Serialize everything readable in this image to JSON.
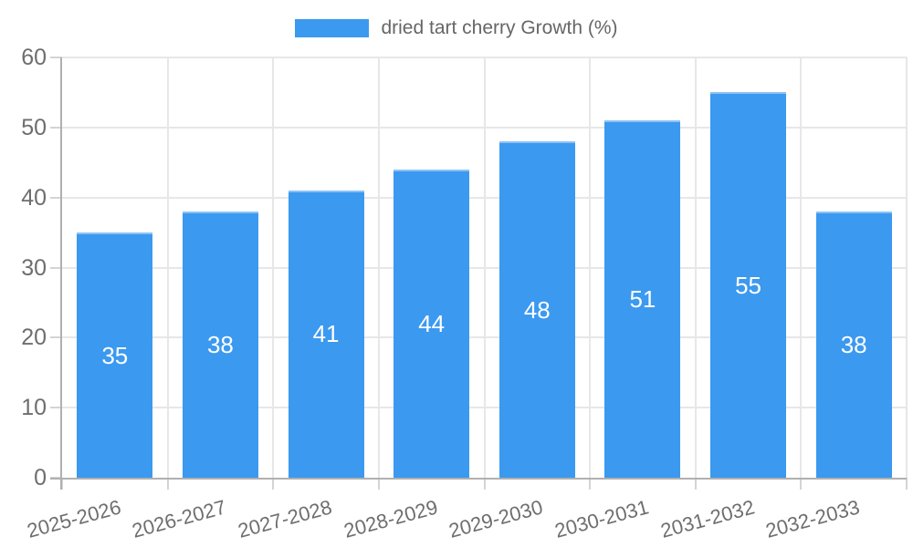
{
  "legend": {
    "label": "dried tart cherry Growth (%)"
  },
  "chart_data": {
    "type": "bar",
    "title": "",
    "xlabel": "",
    "ylabel": "",
    "categories": [
      "2025-2026",
      "2026-2027",
      "2027-2028",
      "2028-2029",
      "2029-2030",
      "2030-2031",
      "2031-2032",
      "2032-2033"
    ],
    "series": [
      {
        "name": "dried tart cherry Growth (%)",
        "values": [
          35,
          38,
          41,
          44,
          48,
          51,
          55,
          38
        ]
      }
    ],
    "ylim": [
      0,
      60
    ],
    "yticks": [
      0,
      10,
      20,
      30,
      40,
      50,
      60
    ],
    "grid": true,
    "legend_position": "top-center",
    "value_labels": "inside-center",
    "colors": {
      "bar_fill": "#3b99f0",
      "bar_top_border": "#8cc2f4",
      "value_label": "#ffffff",
      "axis_text": "#6e6e6e",
      "legend_text": "#666666",
      "grid_line": "#e7e7e7",
      "tick_line": "#d4d4d4",
      "axis_line": "#b0b0b0",
      "background": "#ffffff"
    }
  }
}
